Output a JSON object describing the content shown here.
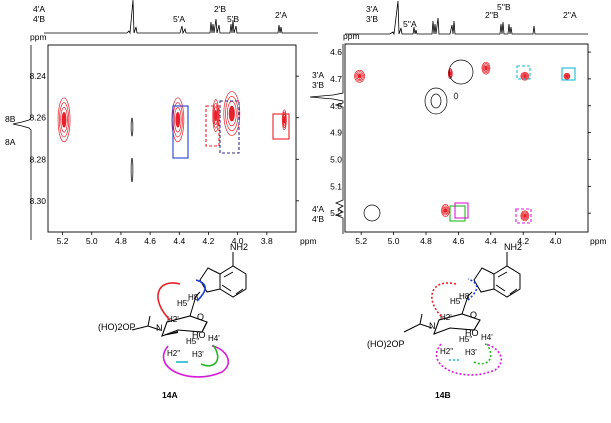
{
  "figure": {
    "left_panel": {
      "f2_peak_labels": [
        [
          "4'A",
          "4'B"
        ],
        [
          "5'A"
        ],
        [
          "2'B"
        ],
        [
          "5'B"
        ],
        [
          "2'A"
        ]
      ],
      "f1_peak_labels": [
        "8B",
        "8A"
      ],
      "ppm_label": "ppm",
      "x_axis_unit": "ppm",
      "y_axis_unit": "ppm"
    },
    "right_panel": {
      "f2_peak_labels": [
        [
          "3'A",
          "3'B"
        ],
        [
          "5''A"
        ],
        [
          "2''B"
        ],
        [
          "5''B"
        ],
        [
          "2''A"
        ]
      ],
      "f1_peak_labels": [
        [
          "3'A",
          "3'B"
        ],
        [
          "4'A",
          "4'B"
        ]
      ],
      "ppm_label": "ppm",
      "x_axis_unit": "ppm",
      "y_axis_unit": "ppm"
    },
    "structures": {
      "left": {
        "compound_id": "14A",
        "amine": "NH2",
        "phosphonate": "(HO)2OP",
        "atoms": [
          "N",
          "O",
          "HO",
          "H8",
          "H5'",
          "H2'",
          "H4'",
          "H5''",
          "H2''",
          "H3'"
        ]
      },
      "right": {
        "compound_id": "14B",
        "amine": "NH2",
        "phosphonate": "(HO)2OP",
        "atoms": [
          "N",
          "O",
          "HO",
          "H8",
          "H5'",
          "H2'",
          "H4'",
          "H5''",
          "H2''",
          "H3'"
        ]
      }
    },
    "colors": {
      "crosspeak": "#e8202a",
      "box_blue": "#1f3fd6",
      "box_red": "#e8202a",
      "box_purple": "#3a2a8c",
      "box_cyan": "#19b9d6",
      "box_magenta": "#d81bd8",
      "box_green": "#22b822",
      "arrow_red": "#e8202a",
      "arrow_blue": "#1f3fd6",
      "arrow_magenta": "#d81bd8",
      "arrow_cyan": "#19b9d6",
      "arrow_green": "#22b822"
    }
  },
  "chart_data": [
    {
      "type": "scatter",
      "title": "",
      "xlabel": "ppm",
      "ylabel": "ppm",
      "x_ticks": [
        5.2,
        5.0,
        4.8,
        4.6,
        4.4,
        4.2,
        4.0,
        3.8
      ],
      "y_ticks": [
        8.24,
        8.26,
        8.28,
        8.3
      ],
      "xlim": [
        5.3,
        3.6
      ],
      "ylim": [
        8.225,
        8.315
      ],
      "x_inverted": true,
      "y_inverted": true,
      "grid": false,
      "series": [
        {
          "points": [
            {
              "x": 5.19,
              "y": 8.261
            },
            {
              "x": 4.41,
              "y": 8.261
            },
            {
              "x": 4.15,
              "y": 8.259
            },
            {
              "x": 4.04,
              "y": 8.258
            },
            {
              "x": 3.68,
              "y": 8.261
            }
          ]
        }
      ]
    },
    {
      "type": "scatter",
      "title": "",
      "xlabel": "ppm",
      "ylabel": "ppm",
      "x_ticks": [
        5.2,
        5.0,
        4.8,
        4.6,
        4.4,
        4.2,
        4.0
      ],
      "y_ticks": [
        4.6,
        4.7,
        4.8,
        4.9,
        5.0,
        5.1,
        5.2
      ],
      "xlim": [
        5.3,
        3.8
      ],
      "ylim": [
        4.57,
        5.27
      ],
      "x_inverted": true,
      "y_inverted": true,
      "grid": false,
      "series": [
        {
          "points": [
            {
              "x": 5.21,
              "y": 4.69
            },
            {
              "x": 4.43,
              "y": 4.66
            },
            {
              "x": 4.65,
              "y": 4.68
            },
            {
              "x": 4.19,
              "y": 4.69
            },
            {
              "x": 3.93,
              "y": 4.69
            },
            {
              "x": 4.68,
              "y": 5.19
            },
            {
              "x": 4.19,
              "y": 5.21
            }
          ]
        }
      ]
    }
  ]
}
